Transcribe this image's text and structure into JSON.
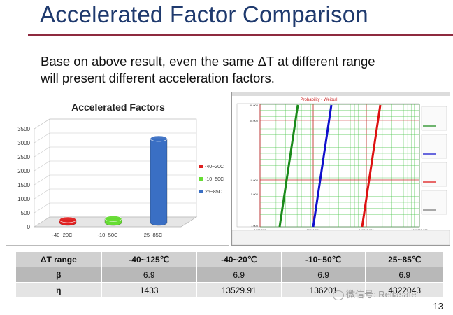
{
  "slide": {
    "title": "Accelerated Factor Comparison",
    "subtitle_line1": "Base on above result, even the same ΔT at different range",
    "subtitle_line2": "will present different acceleration factors.",
    "page_number": "13",
    "watermark": "微信号: Reliasafe"
  },
  "chart_data": [
    {
      "type": "bar",
      "title": "Accelerated Factors",
      "categories": [
        "-40~20C",
        "-10~50C",
        "25~85C"
      ],
      "series": [
        {
          "name": "-40~20C",
          "values": [
            100,
            null,
            null
          ],
          "color": "#e02020"
        },
        {
          "name": "-10~50C",
          "values": [
            null,
            140,
            null
          ],
          "color": "#66dd33"
        },
        {
          "name": "25~85C",
          "values": [
            null,
            null,
            3000
          ],
          "color": "#3a6fc4"
        }
      ],
      "yticks": [
        0,
        500,
        1000,
        1500,
        2000,
        2500,
        3000,
        3500
      ],
      "ylim": [
        0,
        3500
      ],
      "legend": "right"
    },
    {
      "type": "line",
      "title": "Probability - Weibull",
      "series": [
        {
          "name": "",
          "color": "#1a8a1a"
        },
        {
          "name": "",
          "color": "#1010cc"
        },
        {
          "name": "",
          "color": "#dd1111"
        }
      ],
      "y_tick_labels": [
        "99.000",
        "50.000",
        "10.000",
        "5.000",
        "1.000"
      ],
      "x_tick_labels": [
        "1000.000",
        "10000.000",
        "100000.000",
        "1000000.000"
      ],
      "grid": true
    }
  ],
  "table": {
    "headers": [
      "ΔT range",
      "-40~125℃",
      "-40~20℃",
      "-10~50℃",
      "25~85℃"
    ],
    "rows": [
      {
        "label": "β",
        "values": [
          "6.9",
          "6.9",
          "6.9",
          "6.9"
        ]
      },
      {
        "label": "η",
        "values": [
          "1433",
          "13529.91",
          "136201",
          "4322043"
        ]
      }
    ]
  }
}
